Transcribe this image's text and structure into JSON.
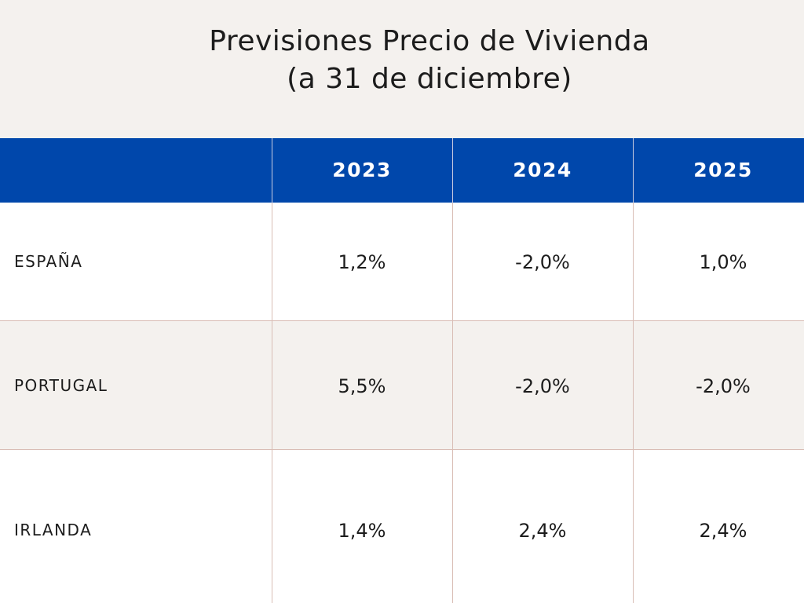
{
  "chart_data": {
    "type": "table",
    "title": [
      "Previsiones Precio de Vivienda",
      "(a 31 de diciembre)"
    ],
    "columns": [
      "2023",
      "2024",
      "2025"
    ],
    "rows": [
      {
        "label": "ESPAÑA",
        "values": [
          "1,2%",
          "-2,0%",
          "1,0%"
        ]
      },
      {
        "label": "PORTUGAL",
        "values": [
          "5,5%",
          "-2,0%",
          "-2,0%"
        ]
      },
      {
        "label": "IRLANDA",
        "values": [
          "1,4%",
          "2,4%",
          "2,4%"
        ]
      }
    ],
    "colors": {
      "header_background": "#0047ab",
      "header_text": "#ffffff",
      "page_background": "#f4f1ee",
      "row_alt_background": "#f4f1ee",
      "row_background": "#ffffff",
      "grid_lines": "#d9bdb5"
    }
  }
}
